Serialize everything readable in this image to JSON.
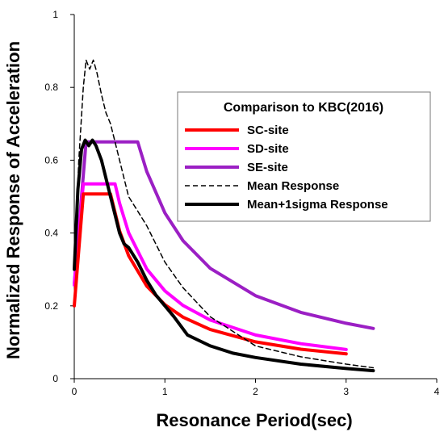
{
  "chart_data": {
    "type": "line",
    "xlabel": "Resonance Period(sec)",
    "ylabel": "Normalized Response of Acceleration",
    "xlim": [
      0,
      4
    ],
    "ylim": [
      0,
      1
    ],
    "xticks": [
      "0",
      "1",
      "2",
      "3",
      "4"
    ],
    "yticks": [
      "0",
      "0.2",
      "0.4",
      "0.6",
      "0.8",
      "1"
    ],
    "grid": false,
    "legend": {
      "title": "Comparison to KBC(2016)",
      "placement": "top-right"
    },
    "series": [
      {
        "name": "SC-site",
        "color": "#ff0000",
        "style": "solid",
        "width": 4,
        "points": [
          [
            0,
            0.2
          ],
          [
            0.1,
            0.507
          ],
          [
            0.4,
            0.507
          ],
          [
            0.5,
            0.406
          ],
          [
            0.6,
            0.338
          ],
          [
            0.8,
            0.254
          ],
          [
            1.0,
            0.203
          ],
          [
            1.2,
            0.169
          ],
          [
            1.5,
            0.135
          ],
          [
            2.0,
            0.101
          ],
          [
            2.5,
            0.081
          ],
          [
            3.0,
            0.068
          ]
        ]
      },
      {
        "name": "SD-site",
        "color": "#ff00ff",
        "style": "solid",
        "width": 4,
        "points": [
          [
            0,
            0.257
          ],
          [
            0.1,
            0.535
          ],
          [
            0.45,
            0.535
          ],
          [
            0.5,
            0.482
          ],
          [
            0.6,
            0.401
          ],
          [
            0.8,
            0.301
          ],
          [
            1.0,
            0.241
          ],
          [
            1.2,
            0.201
          ],
          [
            1.5,
            0.161
          ],
          [
            2.0,
            0.12
          ],
          [
            2.5,
            0.096
          ],
          [
            3.0,
            0.08
          ]
        ]
      },
      {
        "name": "SE-site",
        "color": "#9b1fc4",
        "style": "solid",
        "width": 4,
        "points": [
          [
            0,
            0.26
          ],
          [
            0.13,
            0.65
          ],
          [
            0.7,
            0.65
          ],
          [
            0.8,
            0.569
          ],
          [
            1.0,
            0.455
          ],
          [
            1.2,
            0.379
          ],
          [
            1.5,
            0.303
          ],
          [
            2.0,
            0.228
          ],
          [
            2.5,
            0.182
          ],
          [
            3.0,
            0.152
          ],
          [
            3.3,
            0.138
          ]
        ]
      },
      {
        "name": "Mean Response",
        "color": "#000000",
        "style": "dashed",
        "width": 1.5,
        "points": [
          [
            0,
            0.3
          ],
          [
            0.05,
            0.6
          ],
          [
            0.1,
            0.8
          ],
          [
            0.13,
            0.875
          ],
          [
            0.17,
            0.85
          ],
          [
            0.21,
            0.875
          ],
          [
            0.25,
            0.84
          ],
          [
            0.3,
            0.78
          ],
          [
            0.35,
            0.73
          ],
          [
            0.4,
            0.7
          ],
          [
            0.45,
            0.65
          ],
          [
            0.5,
            0.6
          ],
          [
            0.6,
            0.5
          ],
          [
            0.7,
            0.46
          ],
          [
            0.8,
            0.42
          ],
          [
            0.9,
            0.37
          ],
          [
            1.0,
            0.32
          ],
          [
            1.2,
            0.25
          ],
          [
            1.5,
            0.17
          ],
          [
            2.0,
            0.09
          ],
          [
            2.5,
            0.06
          ],
          [
            3.0,
            0.04
          ],
          [
            3.3,
            0.03
          ]
        ]
      },
      {
        "name": "Mean+1sigma Response",
        "color": "#000000",
        "style": "solid",
        "width": 4,
        "points": [
          [
            0,
            0.3
          ],
          [
            0.04,
            0.52
          ],
          [
            0.08,
            0.63
          ],
          [
            0.12,
            0.655
          ],
          [
            0.16,
            0.64
          ],
          [
            0.2,
            0.655
          ],
          [
            0.24,
            0.64
          ],
          [
            0.3,
            0.6
          ],
          [
            0.35,
            0.55
          ],
          [
            0.4,
            0.5
          ],
          [
            0.45,
            0.45
          ],
          [
            0.5,
            0.4
          ],
          [
            0.55,
            0.37
          ],
          [
            0.6,
            0.36
          ],
          [
            0.65,
            0.34
          ],
          [
            0.7,
            0.32
          ],
          [
            0.8,
            0.27
          ],
          [
            0.9,
            0.23
          ],
          [
            1.0,
            0.2
          ],
          [
            1.1,
            0.17
          ],
          [
            1.25,
            0.12
          ],
          [
            1.5,
            0.09
          ],
          [
            1.75,
            0.07
          ],
          [
            2.0,
            0.058
          ],
          [
            2.5,
            0.04
          ],
          [
            3.0,
            0.028
          ],
          [
            3.3,
            0.022
          ]
        ]
      }
    ]
  }
}
